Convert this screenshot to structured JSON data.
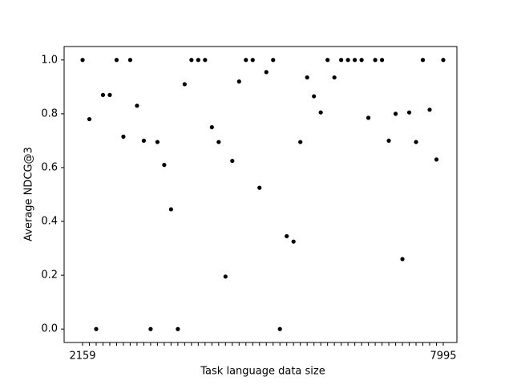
{
  "chart_data": {
    "type": "scatter",
    "xlabel": "Task language data size",
    "ylabel": "Average NDCG@3",
    "categories": [
      "2159",
      null,
      null,
      null,
      null,
      null,
      null,
      null,
      null,
      null,
      null,
      null,
      null,
      null,
      null,
      null,
      null,
      null,
      null,
      null,
      null,
      null,
      null,
      null,
      null,
      null,
      null,
      null,
      null,
      null,
      null,
      null,
      null,
      null,
      null,
      null,
      null,
      null,
      null,
      null,
      null,
      null,
      null,
      null,
      null,
      null,
      null,
      null,
      null,
      null,
      null,
      null,
      null,
      "7995"
    ],
    "values": [
      1.0,
      0.78,
      0.0,
      0.87,
      0.87,
      1.0,
      0.715,
      1.0,
      0.83,
      0.7,
      0.0,
      0.695,
      0.61,
      0.445,
      0.0,
      0.91,
      1.0,
      1.0,
      1.0,
      0.75,
      0.695,
      0.195,
      0.625,
      0.92,
      1.0,
      1.0,
      0.525,
      0.955,
      1.0,
      0.0,
      0.345,
      0.325,
      0.695,
      0.935,
      0.865,
      0.805,
      1.0,
      0.935,
      1.0,
      1.0,
      1.0,
      1.0,
      0.785,
      1.0,
      1.0,
      0.7,
      0.8,
      0.26,
      0.805,
      0.695,
      1.0,
      0.815,
      0.63,
      1.0
    ],
    "color": "#000000",
    "ylim": [
      -0.05,
      1.05
    ],
    "yticks": [
      {
        "value": 0,
        "label": "0.0"
      },
      {
        "value": 0.2,
        "label": "0.2"
      },
      {
        "value": 0.4,
        "label": "0.4"
      },
      {
        "value": 0.6,
        "label": "0.6"
      },
      {
        "value": 0.8,
        "label": "0.8"
      },
      {
        "value": 1,
        "label": "1.0"
      }
    ]
  }
}
